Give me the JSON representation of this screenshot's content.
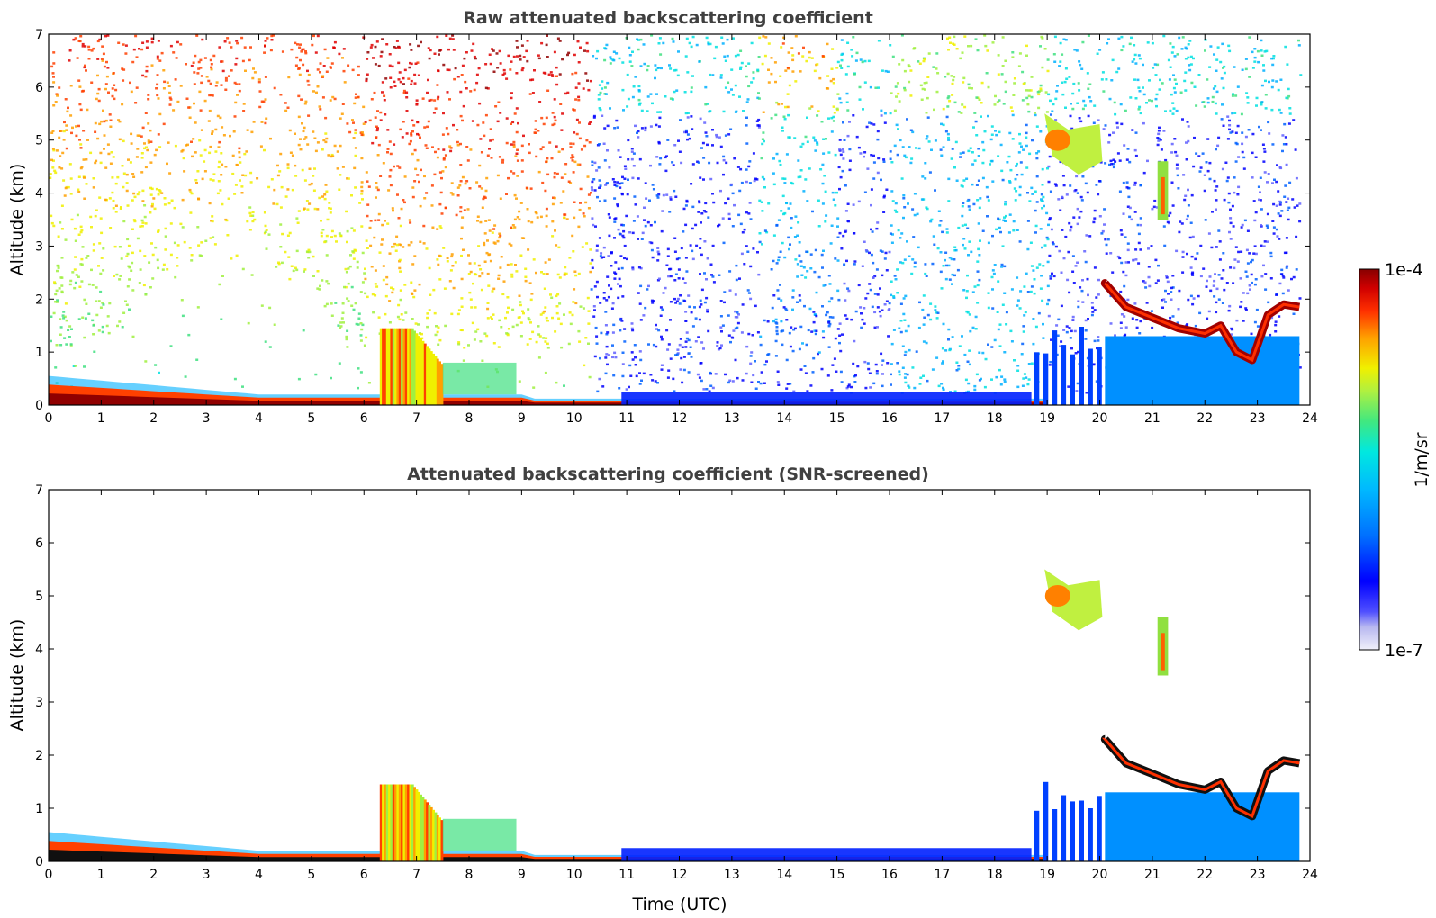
{
  "chart_data": [
    {
      "type": "heatmap",
      "title": "Raw attenuated backscattering coefficient",
      "xlabel": "",
      "ylabel": "Altitude (km)",
      "xlim": [
        0,
        24
      ],
      "ylim": [
        0,
        7
      ],
      "x_ticks": [
        "0",
        "1",
        "2",
        "3",
        "4",
        "5",
        "6",
        "7",
        "8",
        "9",
        "10",
        "11",
        "12",
        "13",
        "14",
        "15",
        "16",
        "17",
        "18",
        "19",
        "20",
        "21",
        "22",
        "23",
        "24"
      ],
      "y_ticks": [
        "0",
        "1",
        "2",
        "3",
        "4",
        "5",
        "6",
        "7"
      ],
      "features": [
        {
          "kind": "surface_layer",
          "x": [
            0,
            19
          ],
          "y": [
            0.05,
            0.6
          ],
          "level": "high"
        },
        {
          "kind": "noise_background",
          "x": [
            0,
            10.3
          ],
          "y": [
            1,
            7
          ],
          "level": "mid"
        },
        {
          "kind": "noise_background",
          "x": [
            10.3,
            24
          ],
          "y": [
            0.2,
            7
          ],
          "level": "low"
        },
        {
          "kind": "aerosol_plume",
          "x": [
            6.3,
            7.5
          ],
          "y": [
            0,
            1.45
          ],
          "level": "mid-high"
        },
        {
          "kind": "cloud",
          "x": [
            18.9,
            20.1
          ],
          "y": [
            4.3,
            5.5
          ],
          "level": "high"
        },
        {
          "kind": "cloud_layer",
          "x": [
            20.1,
            23.8
          ],
          "y": [
            1.0,
            2.4
          ],
          "level": "very-high"
        },
        {
          "kind": "boundary_layer",
          "x": [
            18.7,
            23.8
          ],
          "y": [
            0,
            1.3
          ],
          "level": "low"
        }
      ]
    },
    {
      "type": "heatmap",
      "title": "Attenuated backscattering coefficient (SNR-screened)",
      "xlabel": "Time (UTC)",
      "ylabel": "Altitude (km)",
      "xlim": [
        0,
        24
      ],
      "ylim": [
        0,
        7
      ],
      "x_ticks": [
        "0",
        "1",
        "2",
        "3",
        "4",
        "5",
        "6",
        "7",
        "8",
        "9",
        "10",
        "11",
        "12",
        "13",
        "14",
        "15",
        "16",
        "17",
        "18",
        "19",
        "20",
        "21",
        "22",
        "23",
        "24"
      ],
      "y_ticks": [
        "0",
        "1",
        "2",
        "3",
        "4",
        "5",
        "6",
        "7"
      ],
      "features": [
        {
          "kind": "surface_layer",
          "x": [
            0,
            19
          ],
          "y": [
            0.05,
            0.6
          ],
          "level": "high"
        },
        {
          "kind": "aerosol_plume",
          "x": [
            6.3,
            7.5
          ],
          "y": [
            0,
            1.45
          ],
          "level": "mid-high"
        },
        {
          "kind": "cloud",
          "x": [
            18.9,
            20.1
          ],
          "y": [
            4.3,
            5.5
          ],
          "level": "high"
        },
        {
          "kind": "cloud_layer",
          "x": [
            20.1,
            23.8
          ],
          "y": [
            1.0,
            2.4
          ],
          "level": "very-high"
        },
        {
          "kind": "boundary_layer",
          "x": [
            18.7,
            23.8
          ],
          "y": [
            0,
            1.5
          ],
          "level": "low"
        }
      ]
    }
  ],
  "colorbar": {
    "label": "1/m/sr",
    "max_label": "1e-4",
    "min_label": "1e-7",
    "colors": [
      "#e8e8f8",
      "#b8b8f0",
      "#6060ff",
      "#0000ff",
      "#0060ff",
      "#00b0ff",
      "#00e0e0",
      "#40e080",
      "#a0f040",
      "#f0f000",
      "#ffa000",
      "#ff4000",
      "#e00000",
      "#900000"
    ]
  }
}
